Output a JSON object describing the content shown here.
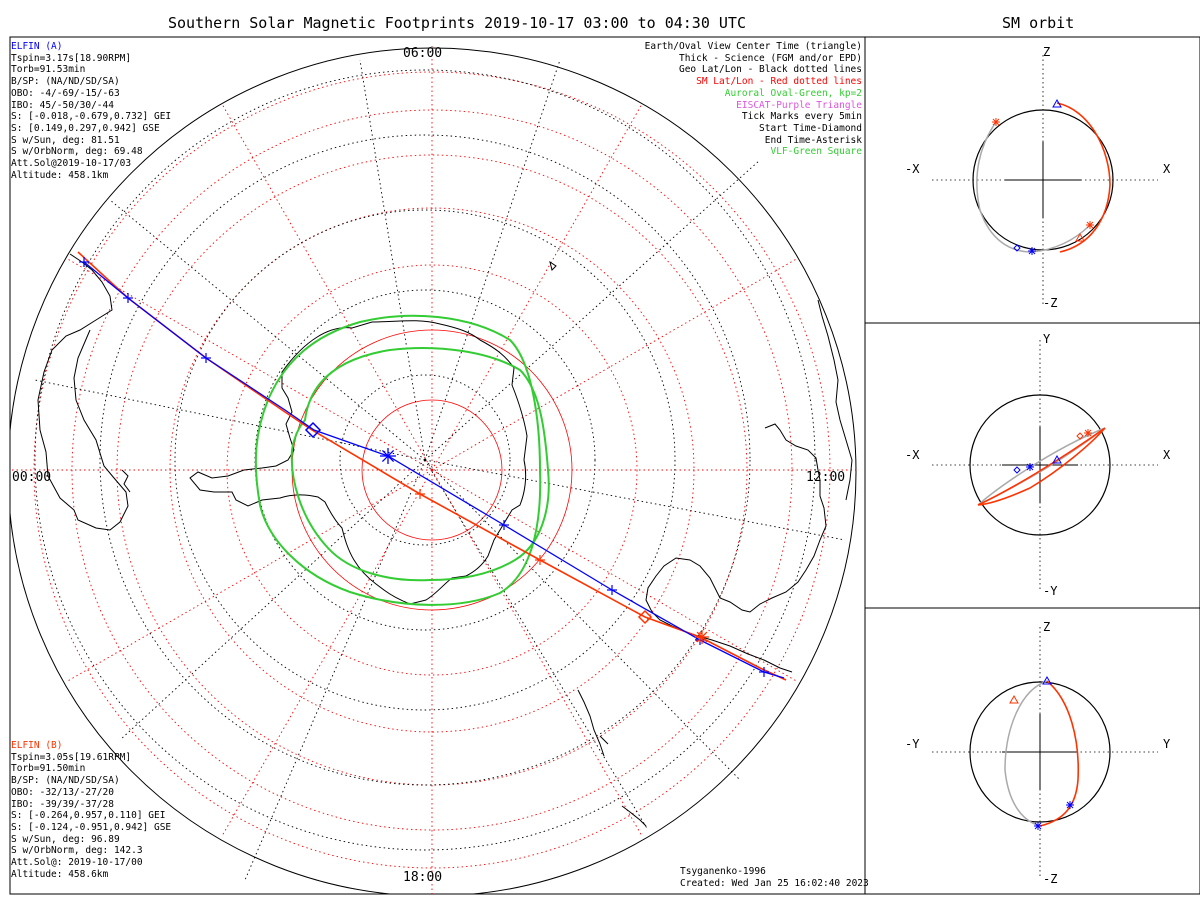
{
  "title": "Southern Solar Magnetic Footprints 2019-10-17 03:00 to 04:30 UTC",
  "orbit_title": "SM orbit",
  "map": {
    "mlt_labels": {
      "top": "06:00",
      "left": "00:00",
      "right": "12:00",
      "bottom": "18:00"
    }
  },
  "elfin_a": {
    "name": "ELFIN (A)",
    "color": "#0000ff",
    "lines": [
      "Tspin=3.17s[18.90RPM]",
      "Torb=91.53min",
      "B/SP: (NA/ND/SD/SA)",
      "OBO: -4/-69/-15/-63",
      "IBO: 45/-50/30/-44",
      "S: [-0.018,-0.679,0.732] GEI",
      "S: [0.149,0.297,0.942] GSE",
      "S w/Sun, deg: 81.51",
      "S w/OrbNorm, deg: 69.48",
      "Att.Sol@2019-10-17/03",
      "Altitude: 458.1km"
    ]
  },
  "elfin_b": {
    "name": "ELFIN (B)",
    "color": "#ff3300",
    "lines": [
      "Tspin=3.05s[19.61RPM]",
      "Torb=91.50min",
      "B/SP: (NA/ND/SD/SA)",
      "OBO: -32/13/-27/20",
      "IBO: -39/39/-37/28",
      "S: [-0.264,0.957,0.110] GEI",
      "S: [-0.124,-0.951,0.942] GSE",
      "S w/Sun, deg: 96.89",
      "S w/OrbNorm, deg: 142.3",
      "Att.Sol@: 2019-10-17/00",
      "Altitude: 458.6km"
    ]
  },
  "legend": [
    {
      "text": "Earth/Oval View Center Time (triangle)",
      "color": "#000000"
    },
    {
      "text": "Thick - Science (FGM and/or EPD)",
      "color": "#000000"
    },
    {
      "text": "Geo Lat/Lon - Black dotted lines",
      "color": "#000000"
    },
    {
      "text": "SM Lat/Lon - Red dotted lines",
      "color": "#ff0000"
    },
    {
      "text": "Auroral Oval-Green, kp=2",
      "color": "#33cc33"
    },
    {
      "text": "EISCAT-Purple Triangle",
      "color": "#dd55dd"
    },
    {
      "text": "Tick Marks every 5min",
      "color": "#000000"
    },
    {
      "text": "Start Time-Diamond",
      "color": "#000000"
    },
    {
      "text": "End Time-Asterisk",
      "color": "#000000"
    },
    {
      "text": "VLF-Green Square",
      "color": "#33cc33"
    }
  ],
  "credits": {
    "model": "Tsyganenko-1996",
    "created": "Created: Wed Jan 25 16:02:40 2023"
  },
  "orbit_panels": [
    {
      "id": "xz",
      "top": "Z",
      "bottom": "-Z",
      "left": "-X",
      "right": "X"
    },
    {
      "id": "xy",
      "top": "Y",
      "bottom": "-Y",
      "left": "-X",
      "right": "X"
    },
    {
      "id": "yz",
      "top": "Z",
      "bottom": "-Z",
      "left": "-Y",
      "right": "Y"
    }
  ],
  "colors": {
    "elfin_a": "#0000ff",
    "elfin_b": "#ff3300",
    "oval": "#33cc33",
    "sm_grid": "#ff0000",
    "geo_grid": "#000000"
  }
}
